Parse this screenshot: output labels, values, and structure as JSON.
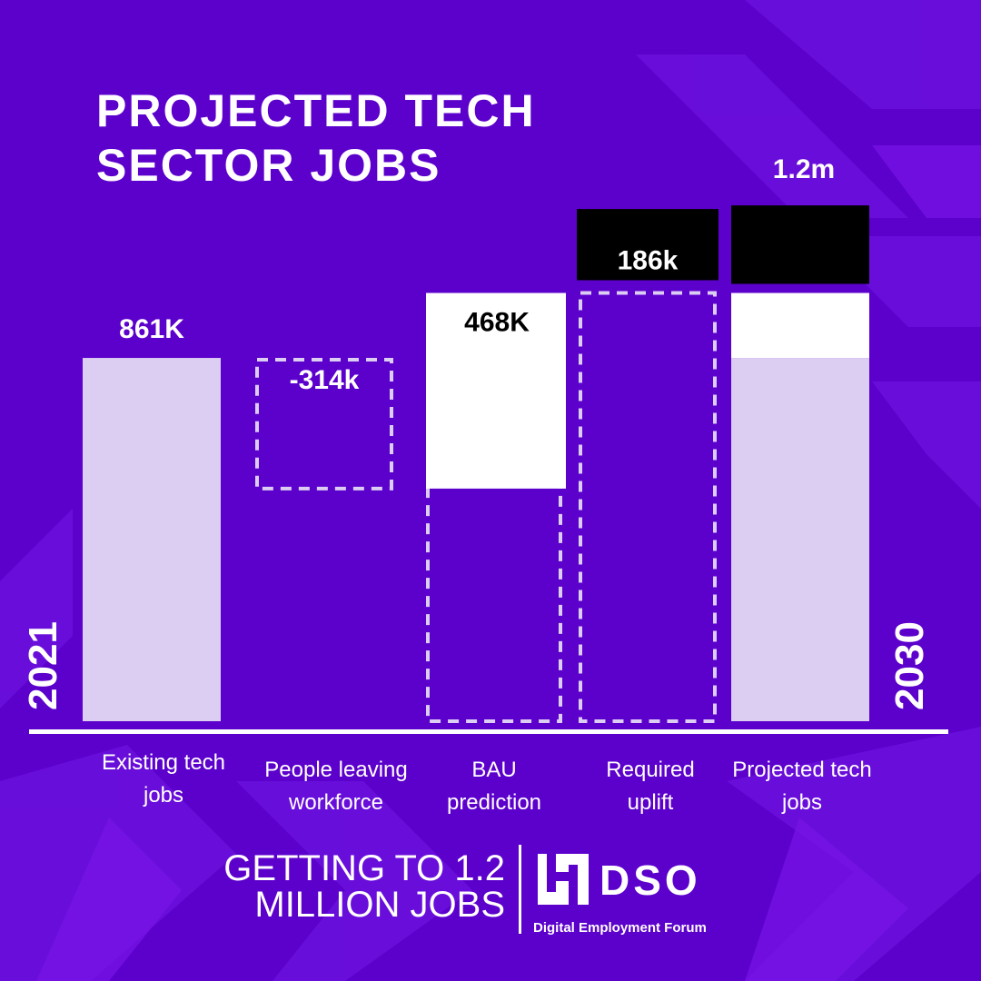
{
  "colors": {
    "background": "#5c00cc",
    "existing_fill": "#dccdf3",
    "bau_fill": "#ffffff",
    "uplift_fill": "#000000",
    "dashed_outline": "#dccdf3",
    "text": "#ffffff"
  },
  "title_lines": [
    "PROJECTED TECH",
    "SECTOR JOBS"
  ],
  "axis": {
    "start_year": "2021",
    "end_year": "2030"
  },
  "chart_data": {
    "type": "bar",
    "subtype": "waterfall",
    "units": "jobs (thousands)",
    "categories": [
      "Existing tech jobs",
      "People leaving workforce",
      "BAU prediction",
      "Required uplift",
      "Projected tech jobs"
    ],
    "category_lines": [
      [
        "Existing tech",
        "jobs"
      ],
      [
        "People leaving",
        "workforce"
      ],
      [
        "BAU",
        "prediction"
      ],
      [
        "Required",
        "uplift"
      ],
      [
        "Projected tech",
        "jobs"
      ]
    ],
    "values": [
      861,
      -314,
      468,
      186,
      1200
    ],
    "data_labels": [
      "861K",
      "-314k",
      "468K",
      "186k",
      "1.2m"
    ],
    "ylim": [
      0,
      1240
    ],
    "grid": false,
    "legend": "none"
  },
  "footer": {
    "tagline_lines": [
      "GETTING TO 1.2",
      "MILLION JOBS"
    ],
    "logo_text": "DSO",
    "org_name": "Digital Employment Forum"
  }
}
